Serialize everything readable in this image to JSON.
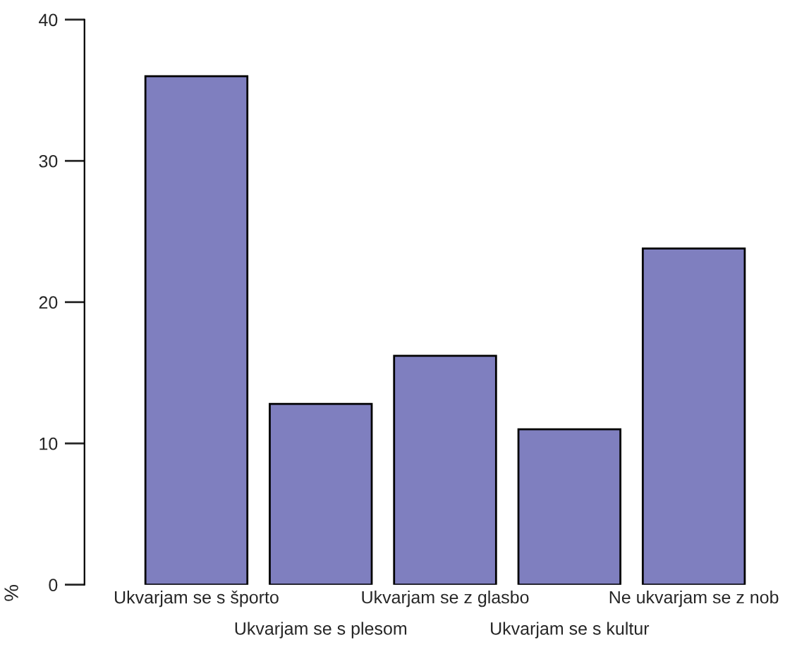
{
  "chart_data": {
    "type": "bar",
    "ylabel": "%",
    "categories": [
      "Ukvarjam se s športo",
      "Ukvarjam se s plesom",
      "Ukvarjam se z glasbo",
      "Ukvarjam se s kultur",
      "Ne ukvarjam se z nob"
    ],
    "values": [
      36,
      12.8,
      16.2,
      11,
      23.8
    ],
    "color": "#7f7fbf",
    "ylim": [
      0,
      40
    ],
    "yticks": [
      0,
      10,
      20,
      30,
      40
    ],
    "grid": false,
    "legend": false
  }
}
